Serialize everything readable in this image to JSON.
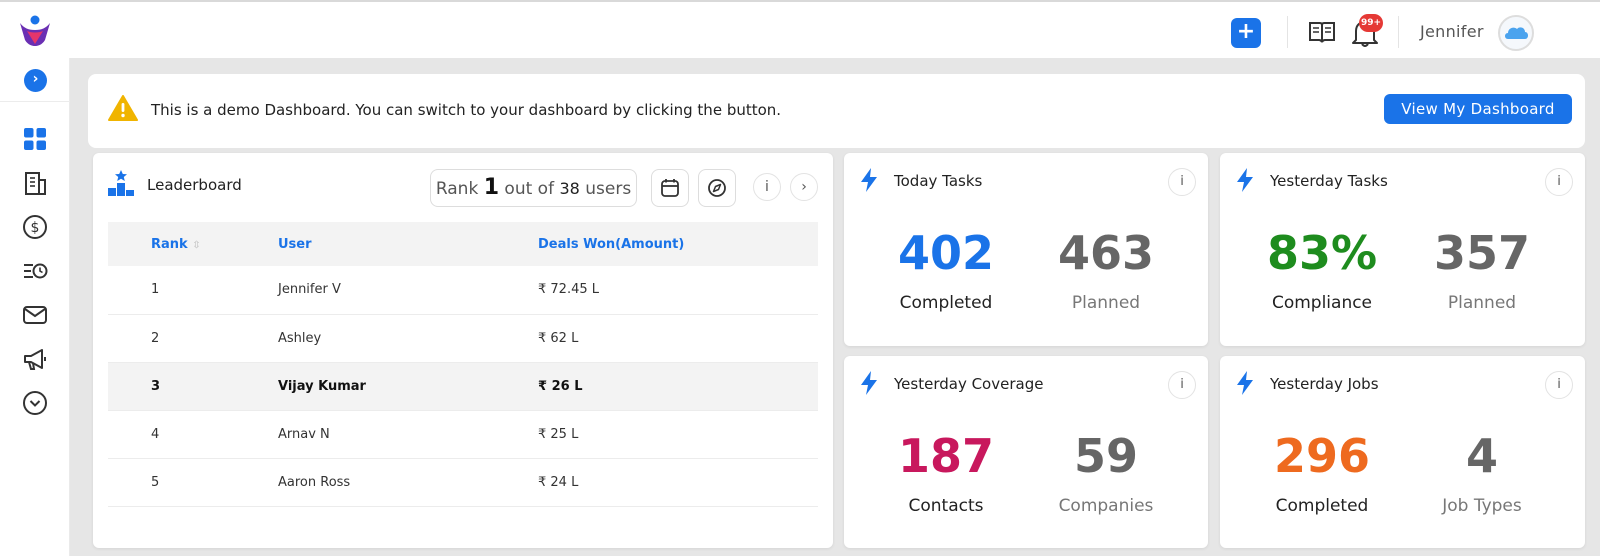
{
  "header": {
    "add_label": "+",
    "notification_badge": "99+",
    "username": "Jennifer"
  },
  "sidebar": {
    "collapse_label": "›",
    "icons": [
      "dashboard-grid-icon",
      "building-icon",
      "dollar-icon",
      "task-list-clock-icon",
      "mail-icon",
      "megaphone-icon",
      "chevron-down-circle-icon"
    ]
  },
  "banner": {
    "message": "This is a demo Dashboard. You can switch to your dashboard by clicking the button.",
    "button_label": "View My Dashboard"
  },
  "leaderboard": {
    "title": "Leaderboard",
    "rank_prefix": "Rank",
    "rank_value": "1",
    "rank_middle": "out of",
    "total_users": "38",
    "rank_suffix": "users",
    "info_label": "i",
    "next_label": "›",
    "columns": [
      "Rank",
      "User",
      "Deals Won(Amount)"
    ],
    "rows": [
      {
        "rank": "1",
        "user": "Jennifer V",
        "amount": "₹ 72.45 L"
      },
      {
        "rank": "2",
        "user": "Ashley",
        "amount": "₹ 62 L"
      },
      {
        "rank": "3",
        "user": "Vijay Kumar",
        "amount": "₹ 26 L"
      },
      {
        "rank": "4",
        "user": "Arnav N",
        "amount": "₹ 25 L"
      },
      {
        "rank": "5",
        "user": "Aaron Ross",
        "amount": "₹ 24 L"
      }
    ]
  },
  "stats": {
    "today_tasks": {
      "title": "Today Tasks",
      "info": "i",
      "value1": "402",
      "label1": "Completed",
      "value2": "463",
      "label2": "Planned"
    },
    "yesterday_tasks": {
      "title": "Yesterday Tasks",
      "info": "i",
      "value1": "83%",
      "label1": "Compliance",
      "value2": "357",
      "label2": "Planned"
    },
    "yesterday_coverage": {
      "title": "Yesterday Coverage",
      "info": "i",
      "value1": "187",
      "label1": "Contacts",
      "value2": "59",
      "label2": "Companies"
    },
    "yesterday_jobs": {
      "title": "Yesterday Jobs",
      "info": "i",
      "value1": "296",
      "label1": "Completed",
      "value2": "4",
      "label2": "Job Types"
    }
  },
  "colors": {
    "accent": "#1a73e8",
    "blue_value": "#1a73e8",
    "green_value": "#1e8c1e",
    "magenta_value": "#c8185d",
    "orange_value": "#ee6a1f",
    "gray_value": "#666666",
    "warning": "#f0b400"
  }
}
